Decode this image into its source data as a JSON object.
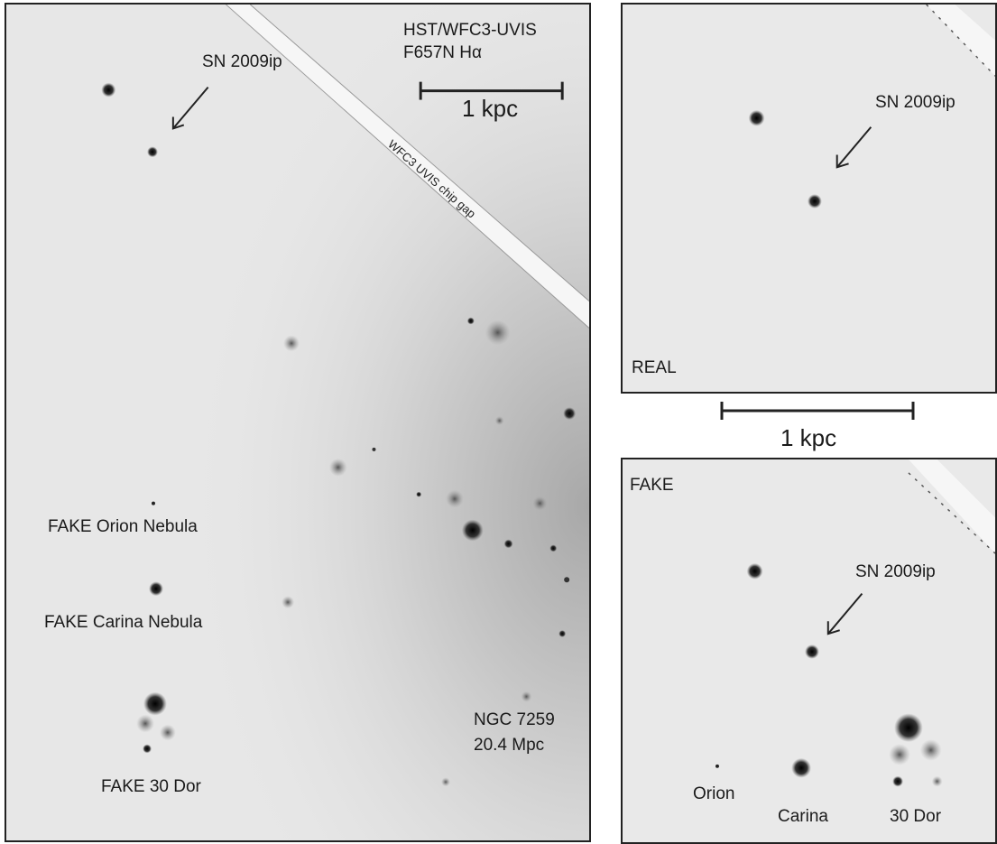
{
  "instrument": {
    "line1": "HST/WFC3-UVIS",
    "line2": "F657N Hα"
  },
  "scalebar": {
    "label": "1 kpc"
  },
  "chip_gap": "WFC3 UVIS chip gap",
  "supernova": "SN 2009ip",
  "main_panel": {
    "fake_orion": "FAKE Orion Nebula",
    "fake_carina": "FAKE Carina Nebula",
    "fake_30dor": "FAKE 30 Dor",
    "galaxy_line1": "NGC 7259",
    "galaxy_line2": "20.4 Mpc"
  },
  "real_panel": {
    "tag": "REAL",
    "sn": "SN 2009ip"
  },
  "middle_scalebar": {
    "label": "1 kpc"
  },
  "fake_panel": {
    "tag": "FAKE",
    "sn": "SN 2009ip",
    "orion": "Orion",
    "carina": "Carina",
    "dor": "30 Dor"
  }
}
